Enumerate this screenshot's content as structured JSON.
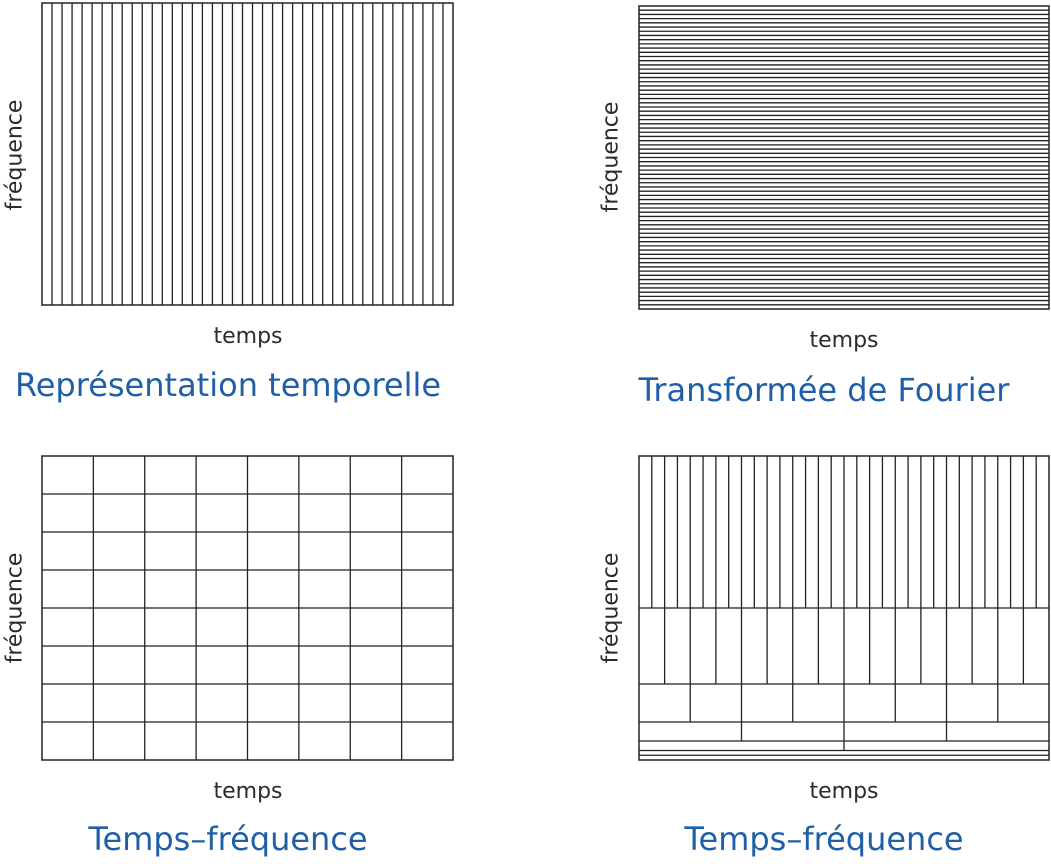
{
  "panels": [
    {
      "id": "temporal",
      "xlabel": "temps",
      "ylabel": "fréquence",
      "caption": "Représentation temporelle",
      "tiling": "vertical-strips",
      "columns": 41
    },
    {
      "id": "fourier",
      "xlabel": "temps",
      "ylabel": "fréquence",
      "caption": "Transformée de Fourier",
      "tiling": "horizontal-strips",
      "rows": 72
    },
    {
      "id": "stft",
      "xlabel": "temps",
      "ylabel": "fréquence",
      "caption": "Temps–fréquence",
      "tiling": "uniform-grid",
      "columns": 8,
      "rows": 8
    },
    {
      "id": "wavelet",
      "xlabel": "temps",
      "ylabel": "fréquence",
      "caption": "Temps–fréquence",
      "tiling": "dyadic",
      "levels": [
        32,
        16,
        8,
        4,
        2,
        1,
        1
      ]
    }
  ],
  "colors": {
    "line": "#222222",
    "caption": "#1f5fa8",
    "label": "#2b2b2b"
  }
}
